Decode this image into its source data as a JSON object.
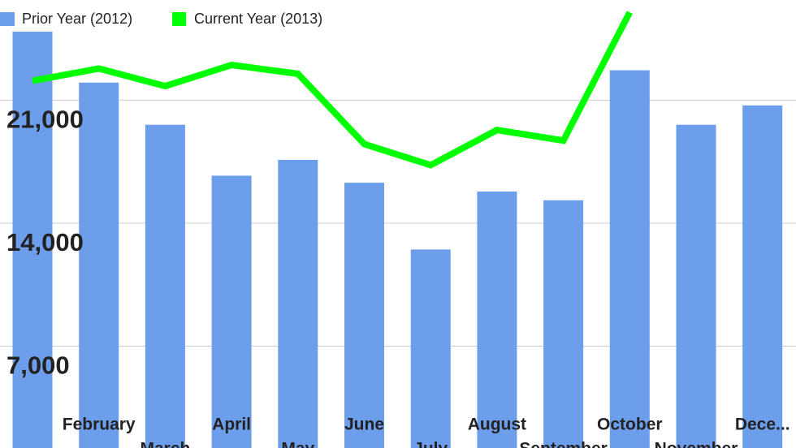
{
  "chart_data": {
    "type": "bar_line",
    "categories": [
      null,
      "February",
      "March",
      "April",
      "May",
      "June",
      "July",
      "August",
      "September",
      "October",
      "November",
      "Dece..."
    ],
    "series": [
      {
        "name": "Prior Year (2012)",
        "type": "bar",
        "color": "#6d9eeb",
        "values": [
          24900,
          22000,
          19600,
          16700,
          17600,
          16300,
          12500,
          15800,
          15300,
          22700,
          19600,
          20700
        ]
      },
      {
        "name": "Current Year (2013)",
        "type": "line",
        "color": "#00ff00",
        "values": [
          22100,
          22800,
          21800,
          23000,
          22500,
          18500,
          17300,
          19300,
          18700,
          26000,
          null,
          null
        ]
      }
    ],
    "ylim": [
      1200,
      26700
    ],
    "yticks": [
      {
        "value": 7000,
        "label": "7,000"
      },
      {
        "value": 14000,
        "label": "14,000"
      },
      {
        "value": 21000,
        "label": "21,000"
      }
    ],
    "grid": true
  }
}
